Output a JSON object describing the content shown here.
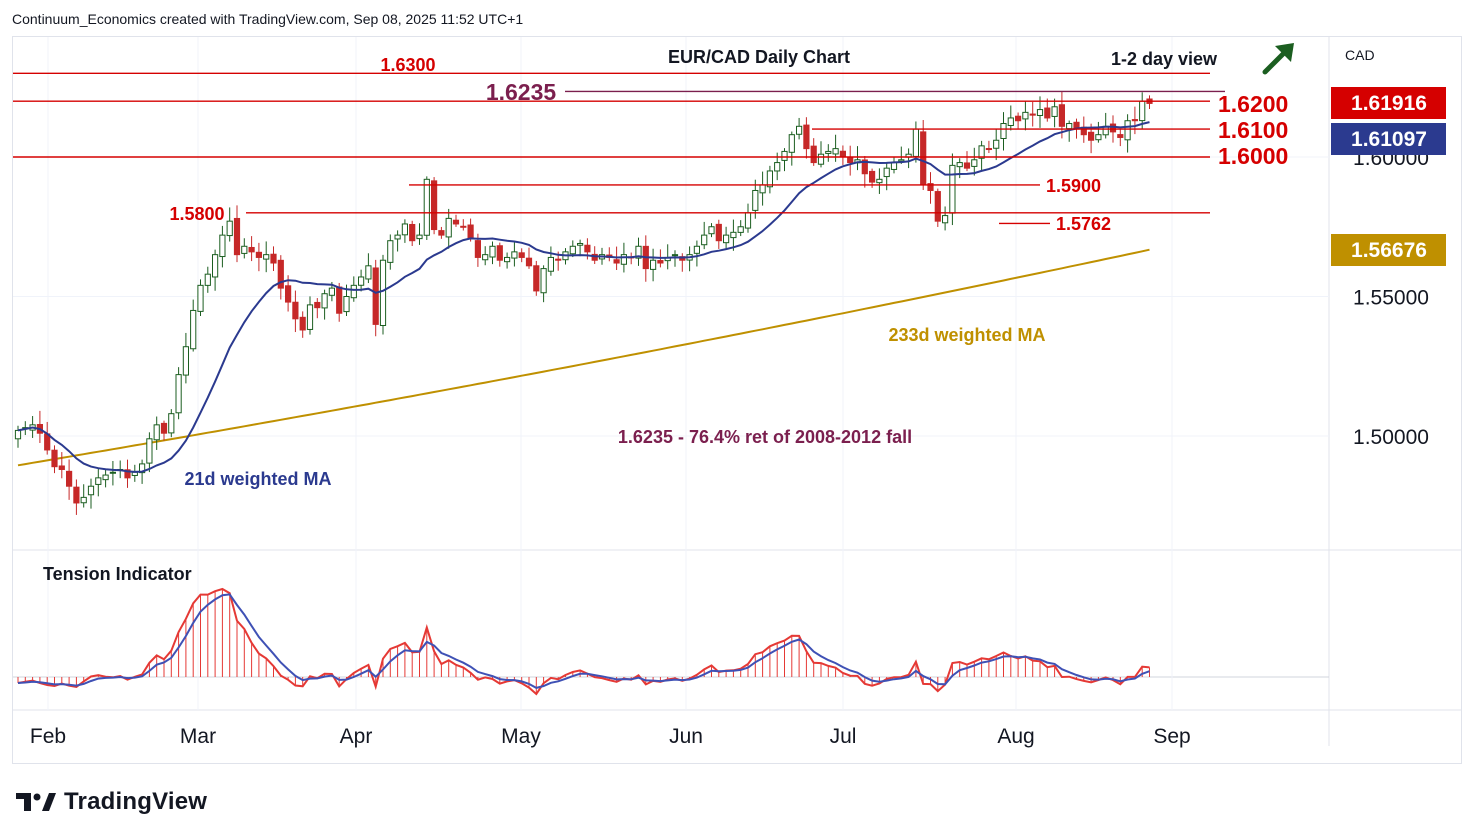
{
  "header": {
    "text": "Continuum_Economics created with TradingView.com, Sep 08, 2025 11:52 UTC+1"
  },
  "brand": {
    "name": "TradingView"
  },
  "chart_data": {
    "type": "candlestick",
    "title": "EUR/CAD Daily Chart",
    "view_label": "1-2 day view",
    "view_direction": "up",
    "currency_label": "CAD",
    "ylim": [
      1.465,
      1.6335
    ],
    "y_ticks": [
      {
        "value": 1.6,
        "label": "1.60000"
      },
      {
        "value": 1.55,
        "label": "1.55000"
      },
      {
        "value": 1.5,
        "label": "1.50000"
      }
    ],
    "x_ticks": [
      "Feb",
      "Mar",
      "Apr",
      "May",
      "Jun",
      "Jul",
      "Aug",
      "Sep"
    ],
    "price_badges": [
      {
        "label": "1.61916",
        "value": 1.61916,
        "color": "#d50000"
      },
      {
        "label": "1.61097",
        "value": 1.61097,
        "color": "#2b3a8f"
      },
      {
        "label": "1.56676",
        "value": 1.56676,
        "color": "#bf9000"
      }
    ],
    "levels": [
      {
        "label": "1.6300",
        "value": 1.63
      },
      {
        "label": "1.6235",
        "value": 1.6235,
        "style": "retracement"
      },
      {
        "label": "1.6200",
        "value": 1.62
      },
      {
        "label": "1.6100",
        "value": 1.61
      },
      {
        "label": "1.6000",
        "value": 1.6
      },
      {
        "label": "1.5900",
        "value": 1.59
      },
      {
        "label": "1.5800",
        "value": 1.58
      },
      {
        "label": "1.5762",
        "value": 1.5762
      }
    ],
    "annotations": [
      {
        "text": "1.6235 - 76.4% ret of 2008-2012 fall",
        "color": "#7b1f4e"
      },
      {
        "text": "21d weighted MA",
        "color": "#2b3a8f"
      },
      {
        "text": "233d weighted MA",
        "color": "#bf9000"
      }
    ],
    "indicator": {
      "name": "Tension Indicator"
    },
    "colors": {
      "up": "#1b5e20",
      "down": "#c62828",
      "level": "#d50000",
      "ma21": "#2b3a8f",
      "ma233": "#bf9000",
      "retrace": "#7b1f4e",
      "arrow": "#1b5e20"
    },
    "closes": [
      1.502,
      1.503,
      1.504,
      1.501,
      1.495,
      1.489,
      1.488,
      1.482,
      1.476,
      1.478,
      1.482,
      1.485,
      1.486,
      1.487,
      1.488,
      1.485,
      1.487,
      1.49,
      1.499,
      1.504,
      1.501,
      1.508,
      1.522,
      1.532,
      1.545,
      1.554,
      1.558,
      1.565,
      1.572,
      1.577,
      1.565,
      1.568,
      1.566,
      1.564,
      1.565,
      1.562,
      1.553,
      1.548,
      1.542,
      1.538,
      1.547,
      1.546,
      1.551,
      1.553,
      1.544,
      1.55,
      1.554,
      1.557,
      1.561,
      1.54,
      1.563,
      1.57,
      1.572,
      1.576,
      1.57,
      1.572,
      1.592,
      1.574,
      1.572,
      1.578,
      1.576,
      1.575,
      1.571,
      1.564,
      1.565,
      1.568,
      1.563,
      1.564,
      1.566,
      1.564,
      1.561,
      1.552,
      1.56,
      1.564,
      1.563,
      1.566,
      1.568,
      1.569,
      1.566,
      1.563,
      1.565,
      1.564,
      1.562,
      1.565,
      1.564,
      1.568,
      1.56,
      1.563,
      1.562,
      1.564,
      1.565,
      1.563,
      1.565,
      1.568,
      1.572,
      1.575,
      1.57,
      1.572,
      1.573,
      1.575,
      1.58,
      1.588,
      1.59,
      1.595,
      1.598,
      1.602,
      1.608,
      1.611,
      1.603,
      1.598,
      1.601,
      1.602,
      1.603,
      1.6,
      1.598,
      1.599,
      1.594,
      1.591,
      1.592,
      1.596,
      1.598,
      1.599,
      1.601,
      1.61,
      1.59,
      1.588,
      1.577,
      1.579,
      1.597,
      1.598,
      1.596,
      1.599,
      1.604,
      1.603,
      1.606,
      1.612,
      1.614,
      1.613,
      1.616,
      1.615,
      1.617,
      1.614,
      1.618,
      1.611,
      1.612,
      1.61,
      1.608,
      1.606,
      1.608,
      1.611,
      1.609,
      1.607,
      1.613,
      1.613,
      1.62,
      1.6192
    ]
  }
}
